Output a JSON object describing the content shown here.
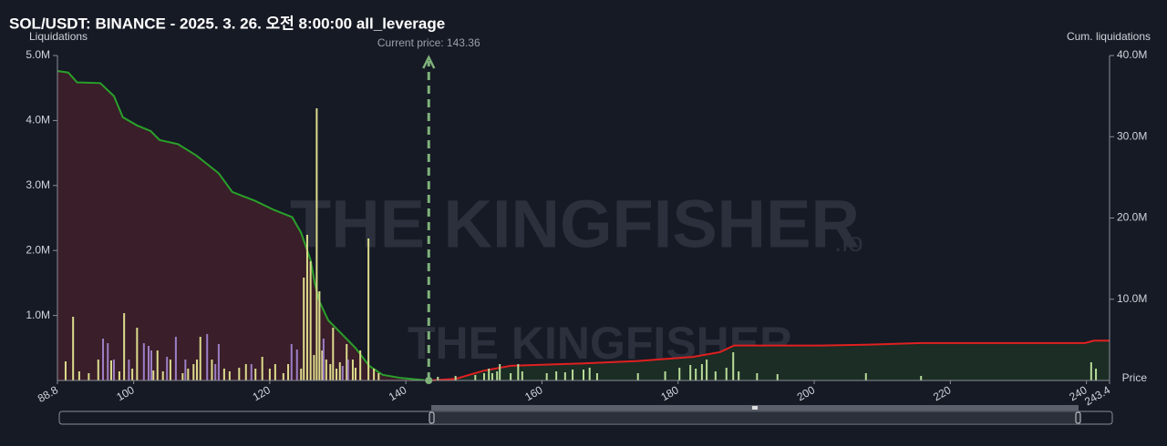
{
  "chart_data": {
    "type": "liquidation",
    "title": "SOL/USDT: BINANCE - 2025. 3. 26. 오전 8:00:00 all_leverage",
    "y_label": "Liquidations",
    "y2_label": "Cum. liquidations",
    "x_label": "Price",
    "watermark": [
      "THE KINGFISHER",
      ".io"
    ],
    "annotation": {
      "label": "Current price: 143.36",
      "value": 143.36,
      "color": "#7fb27a"
    },
    "xlim": [
      88.8,
      243.4
    ],
    "ylim": [
      0,
      5000000
    ],
    "y2lim": [
      0,
      40000000
    ],
    "xticks": [
      88.8,
      100,
      120,
      140,
      160,
      180,
      200,
      220,
      240,
      243.4
    ],
    "yticks": [
      {
        "value": 1000000,
        "label": "1.0M"
      },
      {
        "value": 2000000,
        "label": "2.0M"
      },
      {
        "value": 3000000,
        "label": "3.0M"
      },
      {
        "value": 4000000,
        "label": "4.0M"
      },
      {
        "value": 5000000,
        "label": "5.0M"
      }
    ],
    "y2ticks": [
      {
        "value": 10000000,
        "label": "10.0M"
      },
      {
        "value": 20000000,
        "label": "20.0M"
      },
      {
        "value": 30000000,
        "label": "30.0M"
      },
      {
        "value": 40000000,
        "label": "40.0M"
      }
    ],
    "series": [
      {
        "type": "area",
        "axis": "y2",
        "color": "#2aa02a",
        "fill": "#3a1e29",
        "x": [
          88.8,
          90.4,
          91.7,
          95.1,
          97.1,
          98.4,
          100.5,
          102.5,
          103.8,
          106.5,
          109.2,
          112.5,
          114.5,
          117.9,
          120.6,
          123.3,
          124.6,
          126.0,
          126.6,
          127.3,
          128.6,
          130.6,
          132.6,
          134.6,
          136.6,
          139.3,
          142.7
        ],
        "values": [
          38100000,
          37900000,
          36700000,
          36600000,
          35000000,
          32400000,
          31400000,
          30700000,
          29600000,
          29100000,
          27700000,
          25500000,
          23200000,
          22100000,
          21000000,
          20100000,
          18200000,
          14800000,
          12000000,
          9700000,
          7400000,
          5700000,
          4000000,
          1800000,
          700000,
          300000,
          50000
        ]
      },
      {
        "type": "area",
        "axis": "y2",
        "color": "#e02020",
        "fill": "#1b2d25",
        "x": [
          143.4,
          147.3,
          151.4,
          155.4,
          166.1,
          174.1,
          182.2,
          186.2,
          188.2,
          200.9,
          207.6,
          215.7,
          239.8,
          241.1,
          243.4
        ],
        "values": [
          0,
          200000,
          1200000,
          1800000,
          2100000,
          2400000,
          2900000,
          3500000,
          4300000,
          4300000,
          4400000,
          4600000,
          4600000,
          4900000,
          4900000
        ]
      },
      {
        "type": "bar",
        "color": "#dcdc8c",
        "x": [
          90.0,
          91.1,
          92.0,
          93.4,
          94.8,
          96.7,
          97.9,
          98.6,
          99.8,
          100.5,
          102.9,
          103.5,
          104.3,
          105.4,
          107.2,
          108.0,
          108.8,
          109.3,
          109.8,
          111.5,
          113.3,
          114.1,
          115.5,
          116.5,
          117.9,
          118.9,
          120.0,
          120.8,
          122.0,
          122.7,
          124.6,
          125.0,
          125.5,
          126.0,
          126.5,
          126.9,
          127.3,
          127.7,
          128.3,
          128.9,
          129.3,
          129.8,
          130.3,
          131.3,
          132.2,
          132.6,
          133.3,
          134.5,
          135.3,
          136.0
        ],
        "values": [
          294000,
          980000,
          140000,
          112000,
          322000,
          308000,
          140000,
          1036000,
          182000,
          812000,
          154000,
          462000,
          140000,
          322000,
          112000,
          182000,
          252000,
          322000,
          672000,
          322000,
          182000,
          140000,
          196000,
          252000,
          182000,
          364000,
          182000,
          252000,
          112000,
          252000,
          182000,
          1583000,
          2241000,
          1835000,
          392000,
          4188000,
          1373000,
          462000,
          322000,
          252000,
          812000,
          182000,
          280000,
          560000,
          322000,
          196000,
          462000,
          2185000,
          182000,
          112000
        ]
      },
      {
        "type": "bar",
        "color": "#9c7fc6",
        "x": [
          95.5,
          96.2,
          97.1,
          99.3,
          101.5,
          102.2,
          102.6,
          104.9,
          106.2,
          107.6,
          110.8,
          112.0,
          112.5,
          117.3,
          123.2,
          124.0,
          127.9,
          130.7,
          131.5
        ],
        "values": [
          644000,
          574000,
          322000,
          322000,
          574000,
          532000,
          462000,
          364000,
          672000,
          322000,
          714000,
          252000,
          560000,
          252000,
          560000,
          476000,
          644000,
          224000,
          322000
        ]
      },
      {
        "type": "bar",
        "color": "#b8dc98",
        "x": [
          144.7,
          147.3,
          150.2,
          151.5,
          152.2,
          152.7,
          153.4,
          153.8,
          155.4,
          156.5,
          157.1,
          160.7,
          162.1,
          163.4,
          164.5,
          166.1,
          167.0,
          168.1,
          174.1,
          178.1,
          180.2,
          181.8,
          182.6,
          183.5,
          184.2,
          185.5,
          187.1,
          188.1,
          188.9,
          191.6,
          194.6,
          207.6,
          215.7,
          240.7,
          241.4
        ],
        "values": [
          56000,
          70000,
          84000,
          112000,
          182000,
          112000,
          140000,
          252000,
          112000,
          252000,
          140000,
          112000,
          140000,
          126000,
          168000,
          168000,
          196000,
          112000,
          112000,
          140000,
          196000,
          238000,
          182000,
          252000,
          322000,
          140000,
          196000,
          434000,
          140000,
          112000,
          98000,
          112000,
          70000,
          280000,
          182000
        ]
      }
    ]
  }
}
